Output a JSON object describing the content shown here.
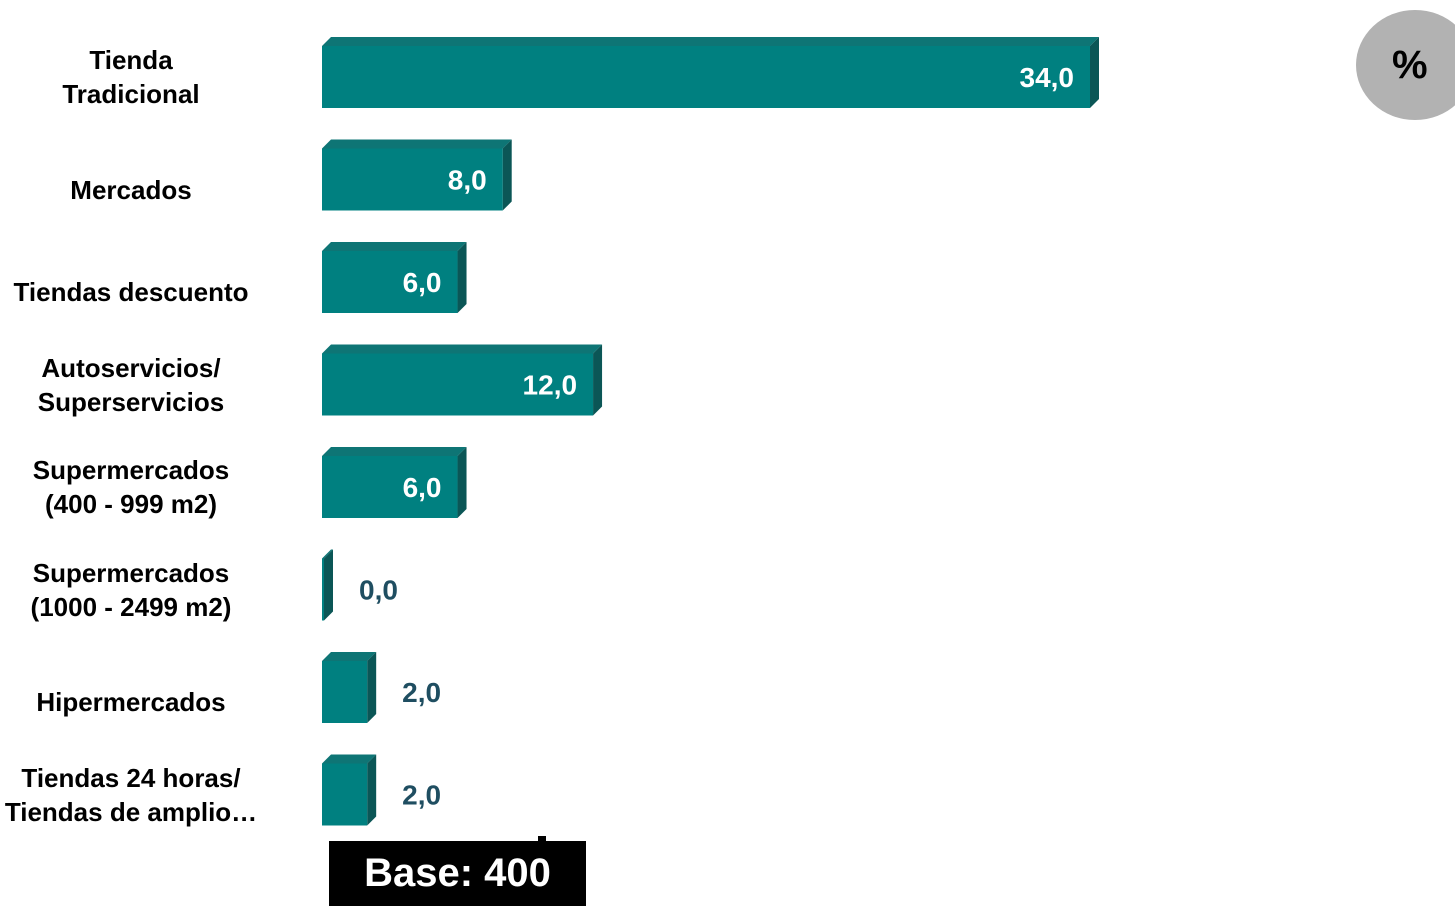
{
  "chart_data": {
    "type": "bar",
    "orientation": "horizontal",
    "categories": [
      "Tienda\nTradicional",
      "Mercados",
      "Tiendas descuento",
      "Autoservicios/\nSuperservicios",
      "Supermercados\n(400 - 999 m2)",
      "Supermercados\n(1000 - 2499 m2)",
      "Hipermercados",
      "Tiendas 24 horas/\nTiendas de amplio…"
    ],
    "values": [
      34.0,
      8.0,
      6.0,
      12.0,
      6.0,
      0.0,
      2.0,
      2.0
    ],
    "value_labels": [
      "34,0",
      "8,0",
      "6,0",
      "12,0",
      "6,0",
      "0,0",
      "2,0",
      "2,0"
    ],
    "unit": "%",
    "base_label": "Base: 400",
    "xlim": [
      0,
      34
    ],
    "grid": false,
    "legend": "none",
    "colors": {
      "bar_front": "#008080",
      "bar_top": "#0e7575",
      "bar_side": "#0b5656",
      "label_inside": "#ffffff",
      "label_outside": "#1f4e61",
      "badge": "#b2b2b2"
    }
  }
}
